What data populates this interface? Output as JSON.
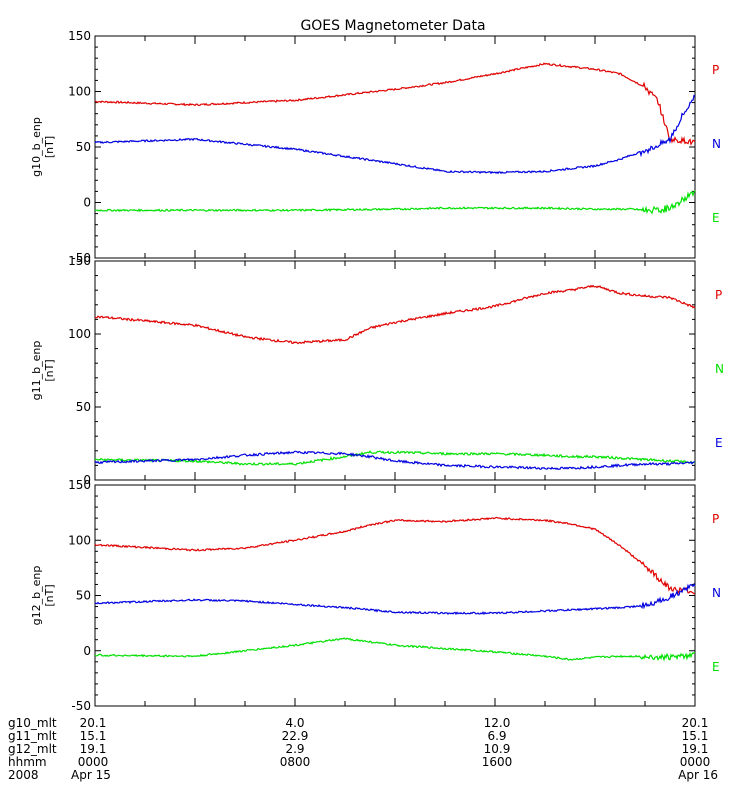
{
  "chart_data": [
    {
      "type": "line",
      "title": "GOES Magnetometer Data",
      "ylabel": "g10_b_enp",
      "yunit": "[nT]",
      "ylim": [
        -50,
        150
      ],
      "yticks": [
        "150",
        "100",
        "50",
        "0",
        "-50"
      ],
      "x_hours": [
        0,
        4,
        8,
        12,
        14,
        16,
        18,
        20,
        21,
        21.5,
        22,
        22.5,
        23,
        23.5,
        24
      ],
      "series": [
        {
          "name": "P",
          "color": "#e00000",
          "values": [
            91,
            88,
            92,
            102,
            108,
            116,
            125,
            120,
            116,
            110,
            104,
            92,
            57,
            56,
            54
          ]
        },
        {
          "name": "N",
          "color": "#0000e0",
          "values": [
            54,
            57,
            48,
            35,
            28,
            27,
            28,
            33,
            39,
            43,
            47,
            51,
            57,
            78,
            96
          ]
        },
        {
          "name": "E",
          "color": "#00e000",
          "values": [
            -7,
            -7,
            -7,
            -6,
            -5,
            -5,
            -5,
            -6,
            -6,
            -6,
            -7,
            -7,
            -5,
            2,
            10
          ]
        }
      ]
    },
    {
      "type": "line",
      "ylabel": "g11_b_enp",
      "yunit": "[nT]",
      "ylim": [
        0,
        150
      ],
      "yticks": [
        "150",
        "100",
        "50",
        "0"
      ],
      "x_hours": [
        0,
        4,
        6,
        8,
        10,
        11,
        12,
        14,
        16,
        18,
        19,
        20,
        21,
        22,
        23,
        24
      ],
      "series": [
        {
          "name": "P",
          "color": "#e00000",
          "values": [
            112,
            106,
            98,
            94,
            96,
            104,
            108,
            114,
            119,
            128,
            130,
            133,
            128,
            126,
            125,
            118
          ]
        },
        {
          "name": "N",
          "color": "#00e000",
          "values": [
            14,
            13,
            11,
            11,
            16,
            19,
            19,
            18,
            18,
            17,
            16,
            16,
            15,
            14,
            13,
            12
          ]
        },
        {
          "name": "E",
          "color": "#0000e0",
          "values": [
            12,
            14,
            17,
            19,
            18,
            16,
            13,
            10,
            9,
            8,
            8,
            9,
            10,
            11,
            11,
            12
          ]
        }
      ]
    },
    {
      "type": "line",
      "ylabel": "g12_b_enp",
      "yunit": "[nT]",
      "ylim": [
        -50,
        150
      ],
      "yticks": [
        "150",
        "100",
        "50",
        "0",
        "-50"
      ],
      "x_hours": [
        0,
        4,
        6,
        8,
        10,
        11,
        12,
        14,
        16,
        18,
        19,
        20,
        21,
        22,
        23,
        24
      ],
      "series": [
        {
          "name": "P",
          "color": "#e00000",
          "values": [
            96,
            91,
            93,
            100,
            108,
            114,
            118,
            117,
            120,
            118,
            115,
            110,
            95,
            77,
            56,
            53
          ]
        },
        {
          "name": "N",
          "color": "#0000e0",
          "values": [
            43,
            46,
            45,
            42,
            39,
            37,
            35,
            34,
            34,
            36,
            37,
            38,
            39,
            41,
            49,
            60
          ]
        },
        {
          "name": "E",
          "color": "#00e000",
          "values": [
            -4,
            -5,
            0,
            5,
            11,
            8,
            5,
            2,
            -1,
            -5,
            -8,
            -6,
            -5,
            -5,
            -6,
            -4
          ]
        }
      ]
    }
  ],
  "footer": {
    "row_labels": [
      "g10_mlt",
      "g11_mlt",
      "g12_mlt",
      "hhmm",
      "2008"
    ],
    "columns": [
      {
        "values": [
          "20.1",
          "15.1",
          "19.1",
          "0000",
          "Apr 15"
        ]
      },
      {
        "values": [
          "4.0",
          "22.9",
          "2.9",
          "0800",
          ""
        ]
      },
      {
        "values": [
          "12.0",
          "6.9",
          "10.9",
          "1600",
          ""
        ]
      },
      {
        "values": [
          "20.1",
          "15.1",
          "19.1",
          "0000",
          "Apr 16"
        ]
      }
    ]
  }
}
